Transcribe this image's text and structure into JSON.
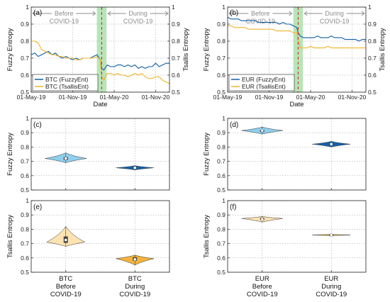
{
  "chart_data": [
    {
      "id": "a",
      "type": "line",
      "panel_label": "(a)",
      "xlabel": "Date",
      "ylabel": "Fuzzy Entropy",
      "y2label": "Tsallis Entropy",
      "x_ticks": [
        "01-May-19",
        "01-Nov-19",
        "01-May-20",
        "01-Nov-20"
      ],
      "x_domain": [
        0,
        20
      ],
      "x_tick_positions": [
        0,
        6,
        12,
        18
      ],
      "ylim": [
        0.5,
        1.0
      ],
      "y_ticks": [
        "0.5",
        "0.6",
        "0.7",
        "0.8",
        "0.9",
        "1"
      ],
      "y2lim": [
        0.5,
        1.0
      ],
      "y2_ticks": [
        "0.5",
        "0.6",
        "0.7",
        "0.8",
        "0.9",
        "1"
      ],
      "shaded_band": [
        9.5,
        10.9
      ],
      "event_line": 10.2,
      "annotations": [
        {
          "text": "Before",
          "x_from": 0,
          "x_to": 9.5
        },
        {
          "text": "COVID-19",
          "x_from": 0,
          "x_to": 9.5
        },
        {
          "text": "During",
          "x_from": 10.9,
          "x_to": 20
        },
        {
          "text": "COVID-19",
          "x_from": 10.9,
          "x_to": 20
        }
      ],
      "series": [
        {
          "name": "BTC (FuzzyEnt)",
          "color": "#0f5fa8",
          "axis": "left",
          "x": [
            0,
            0.5,
            1,
            1.5,
            2,
            2.5,
            3,
            3.5,
            4,
            4.5,
            5,
            5.5,
            6,
            6.5,
            7,
            7.5,
            8,
            8.5,
            9,
            9.5,
            10,
            10.2,
            10.5,
            11,
            11.5,
            12,
            12.5,
            13,
            13.5,
            14,
            14.5,
            15,
            15.5,
            16,
            16.5,
            17,
            17.5,
            18,
            18.5,
            19,
            19.5,
            20
          ],
          "y": [
            0.72,
            0.73,
            0.71,
            0.72,
            0.73,
            0.74,
            0.72,
            0.73,
            0.71,
            0.7,
            0.71,
            0.7,
            0.69,
            0.7,
            0.69,
            0.7,
            0.7,
            0.7,
            0.71,
            0.72,
            0.69,
            0.64,
            0.63,
            0.66,
            0.65,
            0.65,
            0.66,
            0.66,
            0.65,
            0.66,
            0.65,
            0.66,
            0.64,
            0.65,
            0.64,
            0.65,
            0.65,
            0.67,
            0.65,
            0.66,
            0.67,
            0.67
          ]
        },
        {
          "name": "BTC (TsallisEnt)",
          "color": "#f2b32a",
          "axis": "right",
          "x": [
            0,
            0.5,
            1,
            1.5,
            2,
            2.5,
            3,
            3.5,
            4,
            4.5,
            5,
            5.5,
            6,
            6.5,
            7,
            7.5,
            8,
            8.5,
            9,
            9.5,
            10,
            10.2,
            10.5,
            11,
            11.5,
            12,
            12.5,
            13,
            13.5,
            14,
            14.5,
            15,
            15.5,
            16,
            16.5,
            17,
            17.5,
            18,
            18.5,
            19,
            19.5,
            20
          ],
          "y": [
            0.8,
            0.8,
            0.79,
            0.75,
            0.74,
            0.73,
            0.72,
            0.72,
            0.71,
            0.71,
            0.7,
            0.7,
            0.7,
            0.69,
            0.69,
            0.7,
            0.7,
            0.7,
            0.7,
            0.71,
            0.69,
            0.59,
            0.57,
            0.61,
            0.61,
            0.6,
            0.61,
            0.6,
            0.6,
            0.59,
            0.6,
            0.61,
            0.6,
            0.61,
            0.59,
            0.58,
            0.58,
            0.59,
            0.59,
            0.57,
            0.56,
            0.55
          ]
        }
      ],
      "legend_placement": "bottom-left"
    },
    {
      "id": "b",
      "type": "line",
      "panel_label": "(b)",
      "xlabel": "Date",
      "ylabel": "Fuzzy Entropy",
      "y2label": "Tsallis Entropy",
      "x_ticks": [
        "01-May-19",
        "01-Nov-19",
        "01-May-20",
        "01-Nov-20"
      ],
      "x_domain": [
        0,
        20
      ],
      "x_tick_positions": [
        0,
        6,
        12,
        18
      ],
      "ylim": [
        0.5,
        1.0
      ],
      "y_ticks": [
        "0.5",
        "0.6",
        "0.7",
        "0.8",
        "0.9",
        "1"
      ],
      "y2lim": [
        0.5,
        1.0
      ],
      "y2_ticks": [
        "0.5",
        "0.6",
        "0.7",
        "0.8",
        "0.9",
        "1"
      ],
      "shaded_band": [
        9.5,
        10.9
      ],
      "event_line": 10.2,
      "annotations": [
        {
          "text": "Before",
          "x_from": 0,
          "x_to": 9.5
        },
        {
          "text": "COVID-19",
          "x_from": 0,
          "x_to": 9.5
        },
        {
          "text": "During",
          "x_from": 10.9,
          "x_to": 20
        },
        {
          "text": "COVID-19",
          "x_from": 10.9,
          "x_to": 20
        }
      ],
      "series": [
        {
          "name": "EUR (FuzzyEnt)",
          "color": "#0f5fa8",
          "axis": "left",
          "x": [
            0,
            0.5,
            1,
            1.5,
            2,
            2.5,
            3,
            3.5,
            4,
            4.5,
            5,
            5.5,
            6,
            6.5,
            7,
            7.5,
            8,
            8.5,
            9,
            9.5,
            10,
            10.2,
            10.5,
            11,
            11.5,
            12,
            12.5,
            13,
            13.5,
            14,
            14.5,
            15,
            15.5,
            16,
            16.5,
            17,
            17.5,
            18,
            18.5,
            19,
            19.5,
            20
          ],
          "y": [
            0.94,
            0.93,
            0.93,
            0.93,
            0.92,
            0.92,
            0.92,
            0.92,
            0.92,
            0.91,
            0.91,
            0.91,
            0.91,
            0.91,
            0.91,
            0.9,
            0.91,
            0.9,
            0.9,
            0.89,
            0.88,
            0.85,
            0.83,
            0.82,
            0.82,
            0.82,
            0.82,
            0.83,
            0.82,
            0.82,
            0.82,
            0.83,
            0.82,
            0.82,
            0.82,
            0.81,
            0.81,
            0.81,
            0.81,
            0.8,
            0.81,
            0.81
          ]
        },
        {
          "name": "EUR (TsallisEnt)",
          "color": "#f2b32a",
          "axis": "right",
          "x": [
            0,
            0.5,
            1,
            1.5,
            2,
            2.5,
            3,
            3.5,
            4,
            4.5,
            5,
            5.5,
            6,
            6.5,
            7,
            7.5,
            8,
            8.5,
            9,
            9.5,
            10,
            10.2,
            10.5,
            11,
            11.5,
            12,
            12.5,
            13,
            13.5,
            14,
            14.5,
            15,
            15.5,
            16,
            16.5,
            17,
            17.5,
            18,
            18.5,
            19,
            19.5,
            20
          ],
          "y": [
            0.89,
            0.89,
            0.88,
            0.88,
            0.88,
            0.88,
            0.87,
            0.87,
            0.87,
            0.87,
            0.87,
            0.87,
            0.87,
            0.87,
            0.86,
            0.86,
            0.86,
            0.86,
            0.86,
            0.85,
            0.85,
            0.8,
            0.76,
            0.76,
            0.76,
            0.77,
            0.76,
            0.76,
            0.76,
            0.76,
            0.77,
            0.76,
            0.76,
            0.76,
            0.76,
            0.76,
            0.76,
            0.76,
            0.76,
            0.76,
            0.76,
            0.76
          ]
        }
      ],
      "legend_placement": "bottom-left"
    },
    {
      "id": "c",
      "type": "violin",
      "panel_label": "(c)",
      "ylabel": "Fuzzy Entropy",
      "ylim": [
        0.5,
        1.0
      ],
      "y_ticks": [
        "0.5",
        "0.6",
        "0.7",
        "0.8",
        "0.9",
        "1"
      ],
      "groups": [
        {
          "min": 0.69,
          "max": 0.76,
          "peak": 0.72,
          "q1": 0.71,
          "q3": 0.73,
          "median": 0.72,
          "width": 0.6,
          "color": "#8fd0ee",
          "box_fill": "#444444"
        },
        {
          "min": 0.64,
          "max": 0.67,
          "peak": 0.655,
          "q1": 0.65,
          "q3": 0.66,
          "median": 0.655,
          "width": 0.55,
          "color": "#1560aa",
          "box_fill": "#333333"
        }
      ]
    },
    {
      "id": "d",
      "type": "violin",
      "panel_label": "(d)",
      "ylabel": "Fuzzy Entropy",
      "ylim": [
        0.5,
        1.0
      ],
      "y_ticks": [
        "0.5",
        "0.6",
        "0.7",
        "0.8",
        "0.9",
        "1"
      ],
      "groups": [
        {
          "min": 0.89,
          "max": 0.94,
          "peak": 0.915,
          "q1": 0.905,
          "q3": 0.92,
          "median": 0.915,
          "width": 0.6,
          "color": "#8fd0ee",
          "box_fill": "#444444"
        },
        {
          "min": 0.8,
          "max": 0.84,
          "peak": 0.82,
          "q1": 0.815,
          "q3": 0.825,
          "median": 0.82,
          "width": 0.55,
          "color": "#1560aa",
          "box_fill": "#333333"
        }
      ]
    },
    {
      "id": "e",
      "type": "violin",
      "panel_label": "(e)",
      "ylabel": "Tsallis Entropy",
      "ylim": [
        0.5,
        1.0
      ],
      "y_ticks": [
        "0.5",
        "0.6",
        "0.7",
        "0.8",
        "0.9",
        "1"
      ],
      "x_labels": [
        [
          "BTC",
          "Before",
          "COVID-19"
        ],
        [
          "BTC",
          "During",
          "COVID-19"
        ]
      ],
      "groups": [
        {
          "min": 0.68,
          "max": 0.82,
          "peak": 0.71,
          "q1": 0.705,
          "q3": 0.75,
          "median": 0.725,
          "width": 0.55,
          "color": "#fde3b2",
          "box_fill": "#444444"
        },
        {
          "min": 0.55,
          "max": 0.62,
          "peak": 0.595,
          "q1": 0.58,
          "q3": 0.605,
          "median": 0.59,
          "width": 0.55,
          "color": "#f4b43c",
          "box_fill": "#444444"
        }
      ]
    },
    {
      "id": "f",
      "type": "violin",
      "panel_label": "(f)",
      "ylabel": "Tsallis Entropy",
      "ylim": [
        0.5,
        1.0
      ],
      "y_ticks": [
        "0.5",
        "0.6",
        "0.7",
        "0.8",
        "0.9",
        "1"
      ],
      "x_labels": [
        [
          "EUR",
          "Before",
          "COVID-19"
        ],
        [
          "EUR",
          "During",
          "COVID-19"
        ]
      ],
      "groups": [
        {
          "min": 0.85,
          "max": 0.89,
          "peak": 0.875,
          "q1": 0.865,
          "q3": 0.88,
          "median": 0.87,
          "width": 0.6,
          "color": "#fde3b2",
          "box_fill": "#444444"
        },
        {
          "min": 0.755,
          "max": 0.765,
          "peak": 0.76,
          "q1": 0.757,
          "q3": 0.763,
          "median": 0.76,
          "width": 0.55,
          "color": "#f4b43c",
          "box_fill": "#444444"
        }
      ]
    }
  ]
}
